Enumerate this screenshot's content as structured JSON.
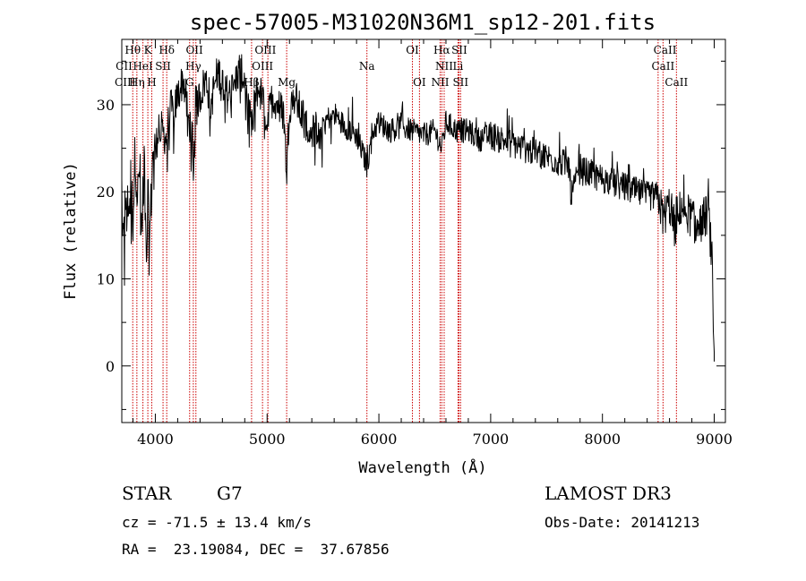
{
  "chart_data": {
    "type": "line",
    "title": "spec-57005-M31020N36M1_sp12-201.fits",
    "xlabel": "Wavelength (Å)",
    "ylabel": "Flux (relative)",
    "xlim": [
      3700,
      9100
    ],
    "ylim": [
      -6.5,
      37.5
    ],
    "xticks": [
      4000,
      5000,
      6000,
      7000,
      8000,
      9000
    ],
    "yticks": [
      0,
      10,
      20,
      30
    ],
    "series": [
      {
        "name": "spectrum",
        "x": [
          3700,
          3710,
          3720,
          3740,
          3760,
          3780,
          3800,
          3820,
          3840,
          3860,
          3880,
          3900,
          3920,
          3933,
          3945,
          3968,
          3985,
          4000,
          4030,
          4060,
          4102,
          4130,
          4160,
          4200,
          4250,
          4300,
          4330,
          4340,
          4360,
          4400,
          4450,
          4500,
          4550,
          4600,
          4650,
          4700,
          4750,
          4800,
          4861,
          4900,
          4950,
          5000,
          5050,
          5100,
          5150,
          5175,
          5200,
          5250,
          5300,
          5400,
          5500,
          5600,
          5700,
          5800,
          5893,
          5950,
          6000,
          6100,
          6200,
          6300,
          6400,
          6500,
          6563,
          6600,
          6700,
          6800,
          6900,
          7000,
          7100,
          7200,
          7300,
          7400,
          7500,
          7600,
          7700,
          7720,
          7800,
          7900,
          8000,
          8100,
          8200,
          8300,
          8400,
          8500,
          8542,
          8600,
          8662,
          8700,
          8800,
          8850,
          8900,
          8950,
          8980,
          9000
        ],
        "y": [
          20.5,
          12.5,
          16,
          21,
          18,
          22,
          17,
          25,
          19,
          23,
          15,
          24,
          10,
          20,
          13,
          21,
          26,
          24,
          28,
          27,
          26,
          30,
          29,
          31,
          33,
          28,
          27,
          20,
          30,
          31,
          33,
          30,
          34,
          33,
          31,
          32,
          34,
          33,
          27,
          32,
          31,
          28,
          31,
          30,
          29,
          22,
          30,
          31,
          29,
          27,
          28,
          29,
          27.5,
          26.5,
          23,
          27,
          28,
          27,
          27.5,
          27,
          26.5,
          27,
          25,
          28,
          27,
          27,
          26,
          26.5,
          26,
          25.5,
          25,
          24.5,
          24,
          23.5,
          23,
          19.5,
          22.5,
          22,
          21.5,
          21,
          20.5,
          20,
          19.5,
          19.5,
          17,
          18.5,
          15,
          18.5,
          17,
          15.5,
          17,
          17.5,
          12,
          0.5
        ]
      }
    ],
    "spectral_lines": [
      {
        "label": "Hθ",
        "x": 3798,
        "row": 0,
        "anchor": "middle"
      },
      {
        "label": "K",
        "x": 3933,
        "row": 0,
        "anchor": "middle"
      },
      {
        "label": "Hδ",
        "x": 4102,
        "row": 0,
        "anchor": "middle"
      },
      {
        "label": "OII",
        "x": 4350,
        "row": 0,
        "anchor": "middle"
      },
      {
        "label": "OIII",
        "x": 4985,
        "row": 0,
        "anchor": "middle"
      },
      {
        "label": "OI",
        "x": 6300,
        "row": 0,
        "anchor": "middle"
      },
      {
        "label": "Hα",
        "x": 6563,
        "row": 0,
        "anchor": "middle"
      },
      {
        "label": "SII",
        "x": 6720,
        "row": 0,
        "anchor": "middle"
      },
      {
        "label": "CaII",
        "x": 8560,
        "row": 0,
        "anchor": "middle"
      },
      {
        "label": "CII",
        "x": 3720,
        "row": 1,
        "anchor": "middle"
      },
      {
        "label": "HeI",
        "x": 3889,
        "row": 1,
        "anchor": "middle"
      },
      {
        "label": "SII",
        "x": 4069,
        "row": 1,
        "anchor": "middle"
      },
      {
        "label": "Hγ",
        "x": 4340,
        "row": 1,
        "anchor": "middle"
      },
      {
        "label": "OIII",
        "x": 4959,
        "row": 1,
        "anchor": "middle"
      },
      {
        "label": "Na",
        "x": 5893,
        "row": 1,
        "anchor": "middle"
      },
      {
        "label": "NII",
        "x": 6584,
        "row": 1,
        "anchor": "middle"
      },
      {
        "label": "Li",
        "x": 6708,
        "row": 1,
        "anchor": "middle"
      },
      {
        "label": "CaII",
        "x": 8542,
        "row": 1,
        "anchor": "middle"
      },
      {
        "label": "CIII",
        "x": 3730,
        "row": 2,
        "anchor": "middle"
      },
      {
        "label": "Hη",
        "x": 3835,
        "row": 2,
        "anchor": "middle"
      },
      {
        "label": "H",
        "x": 3968,
        "row": 2,
        "anchor": "middle"
      },
      {
        "label": "G",
        "x": 4307,
        "row": 2,
        "anchor": "middle"
      },
      {
        "label": "Hβ",
        "x": 4861,
        "row": 2,
        "anchor": "middle"
      },
      {
        "label": "Mg",
        "x": 5175,
        "row": 2,
        "anchor": "middle"
      },
      {
        "label": "OI",
        "x": 6363,
        "row": 2,
        "anchor": "middle"
      },
      {
        "label": "NII",
        "x": 6548,
        "row": 2,
        "anchor": "middle"
      },
      {
        "label": "SII",
        "x": 6731,
        "row": 2,
        "anchor": "middle"
      },
      {
        "label": "CaII",
        "x": 8662,
        "row": 2,
        "anchor": "middle"
      }
    ],
    "line_markers_x": [
      3798,
      3835,
      3889,
      3933,
      3968,
      4069,
      4102,
      4307,
      4340,
      4363,
      4861,
      4959,
      5007,
      5175,
      5893,
      6300,
      6363,
      6548,
      6563,
      6584,
      6708,
      6717,
      6731,
      8498,
      8542,
      8662
    ]
  },
  "info": {
    "object_type": "STAR",
    "subclass": "G7",
    "survey": "LAMOST DR3",
    "cz": "cz = -71.5 ± 13.4 km/s",
    "obs_date": "Obs-Date: 20141213",
    "coords": "RA =  23.19084, DEC =  37.67856"
  },
  "colors": {
    "axes": "#000000",
    "spectrum": "#000000",
    "line_markers": "#cc0000"
  }
}
